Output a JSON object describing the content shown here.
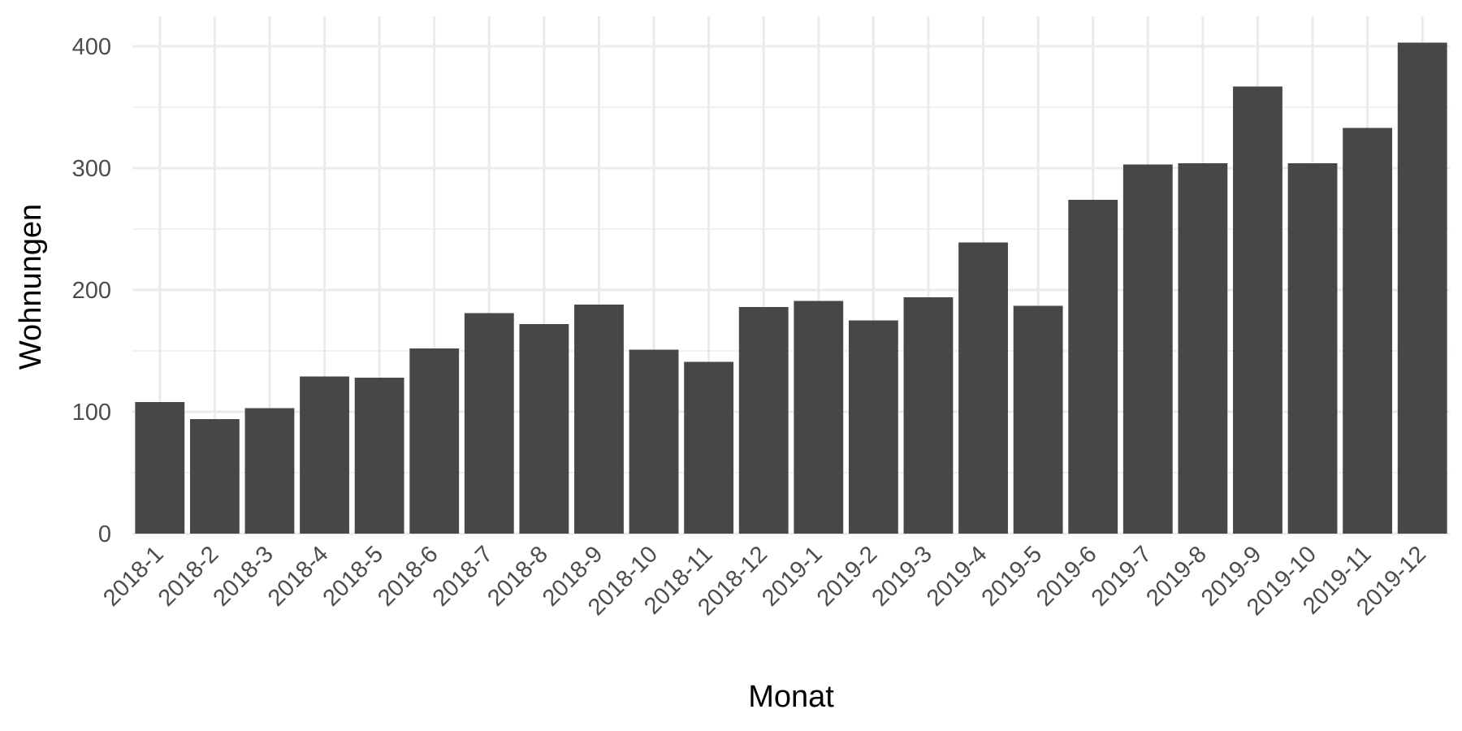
{
  "chart_data": {
    "type": "bar",
    "title": "",
    "xlabel": "Monat",
    "ylabel": "Wohnungen",
    "ylim": [
      0,
      420
    ],
    "yticks": [
      0,
      100,
      200,
      300,
      400
    ],
    "grid": true,
    "legend": "none",
    "bar_color": "#474747",
    "grid_color": "#ebebeb",
    "categories": [
      "2018-1",
      "2018-2",
      "2018-3",
      "2018-4",
      "2018-5",
      "2018-6",
      "2018-7",
      "2018-8",
      "2018-9",
      "2018-10",
      "2018-11",
      "2018-12",
      "2019-1",
      "2019-2",
      "2019-3",
      "2019-4",
      "2019-5",
      "2019-6",
      "2019-7",
      "2019-8",
      "2019-9",
      "2019-10",
      "2019-11",
      "2019-12"
    ],
    "values": [
      108,
      94,
      103,
      129,
      128,
      152,
      181,
      172,
      188,
      151,
      141,
      186,
      191,
      175,
      194,
      239,
      187,
      274,
      303,
      304,
      367,
      304,
      333,
      403
    ]
  }
}
